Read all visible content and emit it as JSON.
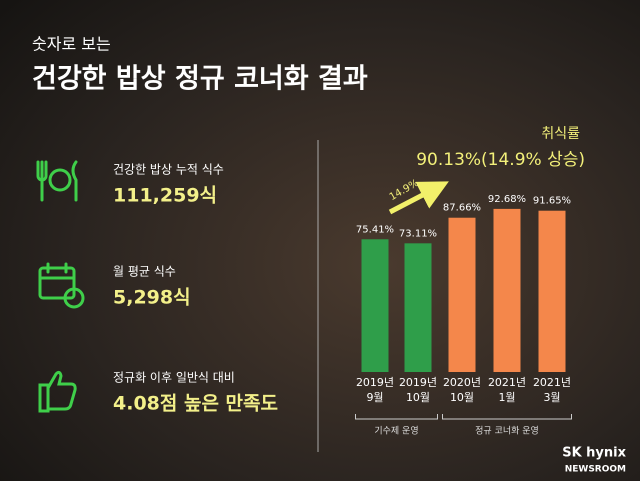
{
  "header": {
    "subtitle": "숫자로 보는",
    "title": "건강한 밥상 정규 코너화 결과"
  },
  "stats": [
    {
      "label": "건강한 밥상 누적 식수",
      "value": "111,259식"
    },
    {
      "label": "월 평균 식수",
      "value": "5,298식"
    },
    {
      "label": "정규화 이후 일반식 대비",
      "value": "4.08점 높은 만족도"
    }
  ],
  "chart_data": {
    "type": "bar",
    "title": "취식률",
    "subtitle": "90.13%(14.9% 상승)",
    "annotation": "14.9%",
    "categories": [
      [
        "2019년",
        "9월"
      ],
      [
        "2019년",
        "10월"
      ],
      [
        "2020년",
        "10월"
      ],
      [
        "2021년",
        "1월"
      ],
      [
        "2021년",
        "3월"
      ]
    ],
    "values": [
      75.41,
      73.11,
      87.66,
      92.68,
      91.65
    ],
    "value_labels": [
      "75.41%",
      "73.11%",
      "87.66%",
      "92.68%",
      "91.65%"
    ],
    "colors": [
      "#2f9e4a",
      "#2f9e4a",
      "#f4874b",
      "#f4874b",
      "#f4874b"
    ],
    "groups": [
      {
        "label": "기수제 운영",
        "from": 0,
        "to": 1
      },
      {
        "label": "정규 코너화 운영",
        "from": 2,
        "to": 4
      }
    ]
  },
  "logo": {
    "brand": "SK hynix",
    "sub": "NEWSROOM"
  }
}
